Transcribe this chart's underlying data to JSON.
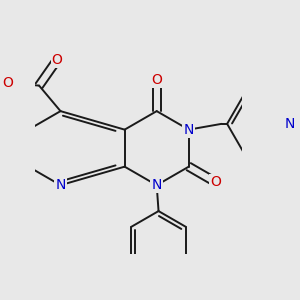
{
  "bg_color": "#e8e8e8",
  "bond_color": "#1a1a1a",
  "n_color": "#0000cc",
  "o_color": "#cc0000",
  "bond_lw": 1.4,
  "figsize": [
    3.0,
    3.0
  ],
  "dpi": 100,
  "xlim": [
    -2.8,
    2.8
  ],
  "ylim": [
    -2.8,
    2.8
  ]
}
